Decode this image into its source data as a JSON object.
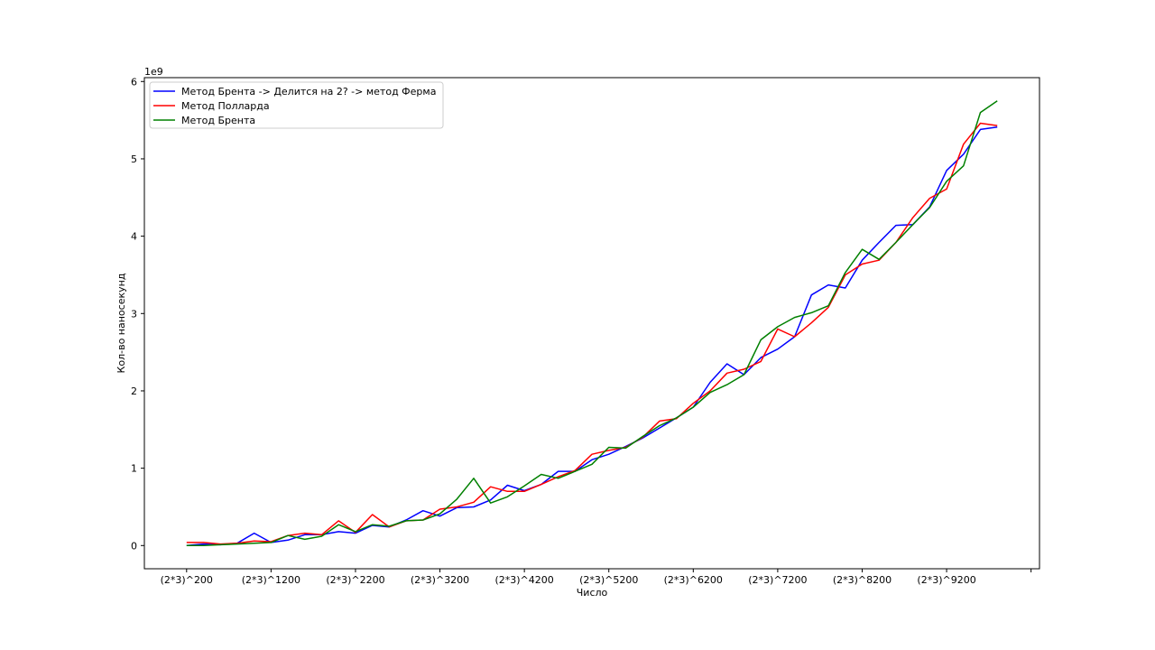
{
  "chart_data": {
    "type": "line",
    "xlabel": "Число",
    "ylabel": "Кол-во наносекунд",
    "y_multiplier": "1e9",
    "x_ticks": [
      "(2*3)^200",
      "(2*3)^1200",
      "(2*3)^2200",
      "(2*3)^3200",
      "(2*3)^4200",
      "(2*3)^5200",
      "(2*3)^6200",
      "(2*3)^7200",
      "(2*3)^8200",
      "(2*3)^9200"
    ],
    "x_tick_values": [
      200,
      1200,
      2200,
      3200,
      4200,
      5200,
      6200,
      7200,
      8200,
      9200
    ],
    "y_ticks": [
      0,
      1,
      2,
      3,
      4,
      5,
      6
    ],
    "xlim": [
      -300,
      10300
    ],
    "ylim": [
      -0.3,
      6.05
    ],
    "legend_position": "upper-left",
    "grid": false,
    "x": [
      200,
      400,
      600,
      800,
      1000,
      1200,
      1400,
      1600,
      1800,
      2000,
      2200,
      2400,
      2600,
      2800,
      3000,
      3200,
      3400,
      3600,
      3800,
      4000,
      4200,
      4400,
      4600,
      4800,
      5000,
      5200,
      5400,
      5600,
      5800,
      6000,
      6200,
      6400,
      6600,
      6800,
      7000,
      7200,
      7400,
      7600,
      7800,
      8000,
      8200,
      8400,
      8600,
      8800,
      9000,
      9200,
      9400,
      9600,
      9800
    ],
    "series": [
      {
        "name": "Метод Брента -> Делится на 2? -> метод Ферма",
        "color": "#0000ff",
        "values": [
          0.0,
          0.02,
          0.01,
          0.03,
          0.16,
          0.04,
          0.07,
          0.14,
          0.14,
          0.18,
          0.16,
          0.26,
          0.24,
          0.33,
          0.45,
          0.38,
          0.49,
          0.5,
          0.59,
          0.78,
          0.71,
          0.79,
          0.96,
          0.96,
          1.11,
          1.18,
          1.28,
          1.39,
          1.52,
          1.65,
          1.79,
          2.11,
          2.35,
          2.21,
          2.43,
          2.54,
          2.7,
          3.24,
          3.37,
          3.33,
          3.69,
          3.92,
          4.14,
          4.15,
          4.38,
          4.85,
          5.06,
          5.38,
          5.41
        ]
      },
      {
        "name": "Метод Полларда",
        "color": "#ff0000",
        "values": [
          0.04,
          0.04,
          0.02,
          0.03,
          0.06,
          0.05,
          0.13,
          0.16,
          0.14,
          0.32,
          0.17,
          0.4,
          0.24,
          0.32,
          0.33,
          0.47,
          0.5,
          0.56,
          0.76,
          0.7,
          0.7,
          0.79,
          0.89,
          0.97,
          1.18,
          1.23,
          1.27,
          1.4,
          1.61,
          1.64,
          1.84,
          2.0,
          2.23,
          2.28,
          2.38,
          2.8,
          2.7,
          2.88,
          3.08,
          3.5,
          3.64,
          3.69,
          3.92,
          4.24,
          4.49,
          4.61,
          5.19,
          5.46,
          5.43
        ]
      },
      {
        "name": "Метод Брента",
        "color": "#008000",
        "values": [
          0.0,
          0.0,
          0.01,
          0.02,
          0.03,
          0.04,
          0.13,
          0.08,
          0.12,
          0.27,
          0.18,
          0.27,
          0.25,
          0.32,
          0.33,
          0.41,
          0.6,
          0.87,
          0.55,
          0.63,
          0.77,
          0.92,
          0.87,
          0.96,
          1.05,
          1.27,
          1.26,
          1.41,
          1.55,
          1.65,
          1.79,
          1.98,
          2.08,
          2.21,
          2.66,
          2.83,
          2.95,
          3.01,
          3.1,
          3.53,
          3.83,
          3.7,
          3.92,
          4.15,
          4.37,
          4.71,
          4.91,
          5.6,
          5.75
        ]
      }
    ]
  }
}
